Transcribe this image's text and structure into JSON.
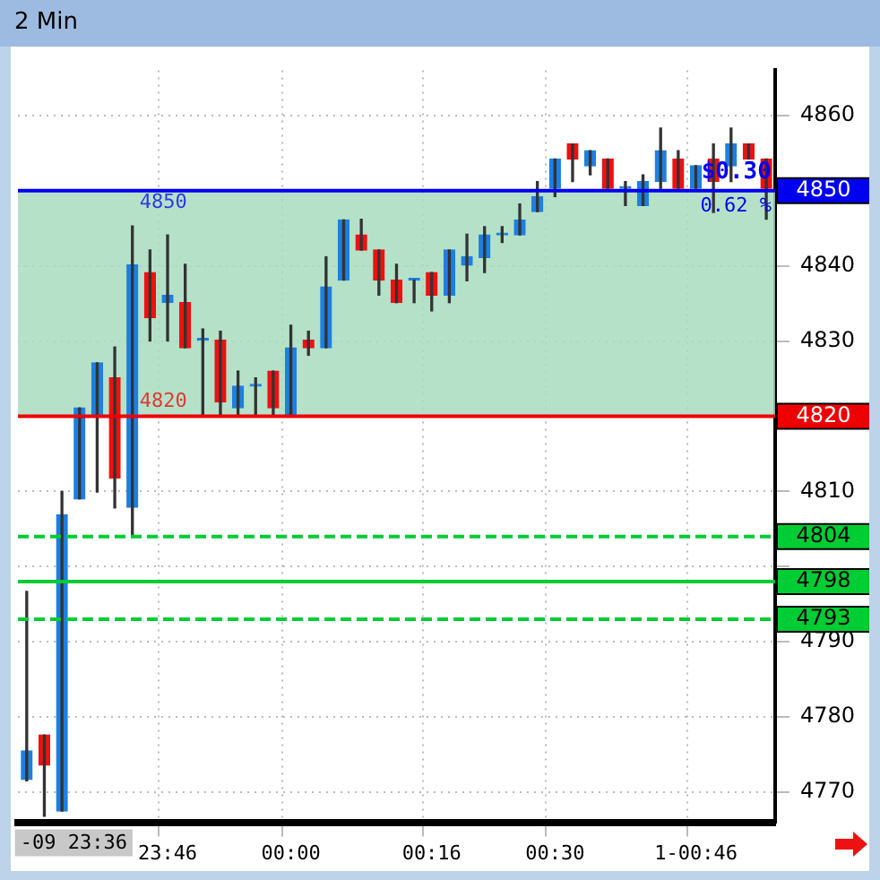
{
  "chart_data": {
    "type": "candlestick",
    "title": "2 Min",
    "categories": [
      null,
      null,
      null,
      null,
      null,
      null,
      null,
      null,
      "23:46",
      null,
      null,
      null,
      null,
      null,
      null,
      "00:00",
      null,
      null,
      null,
      null,
      null,
      null,
      null,
      "00:16",
      null,
      null,
      null,
      null,
      null,
      null,
      "00:30",
      null,
      null,
      null,
      null,
      null,
      null,
      null,
      "1-00:46",
      null,
      null,
      null,
      null
    ],
    "ohlc": [
      [
        4771.7,
        4796.7,
        4771.5,
        4775.5
      ],
      [
        4777.6,
        4777.6,
        4766.8,
        4773.6
      ],
      [
        4767.5,
        4810.0,
        4767.5,
        4806.9
      ],
      [
        4809.0,
        4821.1,
        4809.0,
        4821.1
      ],
      [
        4820.0,
        4827.1,
        4809.9,
        4827.1
      ],
      [
        4825.1,
        4829.2,
        4807.8,
        4811.8
      ],
      [
        4807.9,
        4845.3,
        4803.9,
        4840.1
      ],
      [
        4839.1,
        4842.1,
        4830.0,
        4833.1
      ],
      [
        4835.1,
        4844.1,
        4830.0,
        4836.1
      ],
      [
        4835.1,
        4840.2,
        4829.1,
        4829.1
      ],
      [
        4830.1,
        4831.6,
        4820.1,
        4830.1
      ],
      [
        4830.1,
        4831.3,
        4820.1,
        4821.9
      ],
      [
        4821.1,
        4826.0,
        4820.1,
        4824.0
      ],
      [
        4824.0,
        4825.1,
        4820.1,
        4824.0
      ],
      [
        4826.0,
        4826.0,
        4820.1,
        4821.1
      ],
      [
        4820.1,
        4832.1,
        4820.1,
        4829.1
      ],
      [
        4830.1,
        4831.3,
        4828.1,
        4829.1
      ],
      [
        4829.1,
        4841.2,
        4829.1,
        4837.2
      ],
      [
        4838.1,
        4846.1,
        4838.1,
        4846.1
      ],
      [
        4844.1,
        4846.2,
        4842.1,
        4842.1
      ],
      [
        4842.1,
        4842.1,
        4836.1,
        4838.1
      ],
      [
        4838.1,
        4840.2,
        4835.1,
        4835.1
      ],
      [
        4838.1,
        4838.1,
        4835.1,
        4838.1
      ],
      [
        4839.1,
        4839.1,
        4834.0,
        4836.1
      ],
      [
        4836.1,
        4842.1,
        4835.1,
        4842.1
      ],
      [
        4840.1,
        4844.2,
        4838.0,
        4841.2
      ],
      [
        4841.1,
        4845.2,
        4839.1,
        4844.1
      ],
      [
        4844.1,
        4845.2,
        4843.1,
        4844.1
      ],
      [
        4844.1,
        4848.2,
        4844.1,
        4846.1
      ],
      [
        4847.2,
        4851.2,
        4847.2,
        4849.2
      ],
      [
        4850.3,
        4854.2,
        4849.2,
        4854.2
      ],
      [
        4856.2,
        4856.2,
        4851.2,
        4854.2
      ],
      [
        4853.3,
        4855.3,
        4852.1,
        4855.3
      ],
      [
        4854.2,
        4854.2,
        4850.3,
        4850.3
      ],
      [
        4850.3,
        4851.2,
        4848.0,
        4850.3
      ],
      [
        4848.0,
        4852.1,
        4848.0,
        4851.2
      ],
      [
        4851.2,
        4858.3,
        4850.3,
        4855.3
      ],
      [
        4854.2,
        4855.3,
        4850.3,
        4850.3
      ],
      [
        4850.3,
        4853.3,
        4850.3,
        4853.3
      ],
      [
        4854.2,
        4856.2,
        4847.1,
        4851.2
      ],
      [
        4853.3,
        4858.3,
        4851.2,
        4856.2
      ],
      [
        4856.2,
        4856.2,
        4854.2,
        4854.2
      ],
      [
        4854.2,
        4854.2,
        4846.2,
        4850.3
      ]
    ],
    "colors": [
      "#1e7fe0",
      "#ee1111",
      "#1e7fe0",
      "#1e7fe0",
      "#1e7fe0",
      "#ee1111",
      "#1e7fe0",
      "#ee1111",
      "#1e7fe0",
      "#ee1111",
      "#1e7fe0",
      "#ee1111",
      "#1e7fe0",
      "#1e7fe0",
      "#ee1111",
      "#1e7fe0",
      "#ee1111",
      "#1e7fe0",
      "#1e7fe0",
      "#ee1111",
      "#ee1111",
      "#ee1111",
      "#1e7fe0",
      "#ee1111",
      "#1e7fe0",
      "#1e7fe0",
      "#1e7fe0",
      "#1e7fe0",
      "#1e7fe0",
      "#1e7fe0",
      "#1e7fe0",
      "#ee1111",
      "#1e7fe0",
      "#ee1111",
      "#1e7fe0",
      "#1e7fe0",
      "#1e7fe0",
      "#ee1111",
      "#1e7fe0",
      "#ee1111",
      "#1e7fe0",
      "#ee1111",
      "#ee1111"
    ],
    "ylim": [
      4766,
      4866
    ],
    "yticks": [
      4770,
      4780,
      4790,
      {
        "value": 4800,
        "label": null
      },
      4810,
      4830,
      4840,
      4860
    ],
    "grid": true,
    "legend": false,
    "bands": [
      {
        "axis": "y",
        "from": 4820,
        "to": 4850,
        "color": "#a8dcc0"
      }
    ],
    "ref_lines": [
      {
        "axis": "y",
        "value": 4850,
        "label": "4850",
        "color": "#0000ee",
        "line_style": "solid"
      },
      {
        "axis": "y",
        "value": 4820,
        "label": "4820",
        "color": "#ee0000",
        "line_style": "solid"
      },
      {
        "axis": "y",
        "value": 4804,
        "label": "4804",
        "color": "#00cc33",
        "line_style": "dashed"
      },
      {
        "axis": "y",
        "value": 4798,
        "label": "4798",
        "color": "#00cc33",
        "line_style": "solid"
      },
      {
        "axis": "y",
        "value": 4793,
        "label": "4793",
        "color": "#00cc33",
        "line_style": "dashed"
      }
    ],
    "annotations": [
      "-09 23:36",
      {
        "text": "4850",
        "y": 4850
      },
      {
        "text": "4820",
        "y": 4820
      },
      {
        "text": "$0.30",
        "y": 4850
      },
      {
        "text": "0.62 %",
        "y": 4850
      }
    ]
  }
}
